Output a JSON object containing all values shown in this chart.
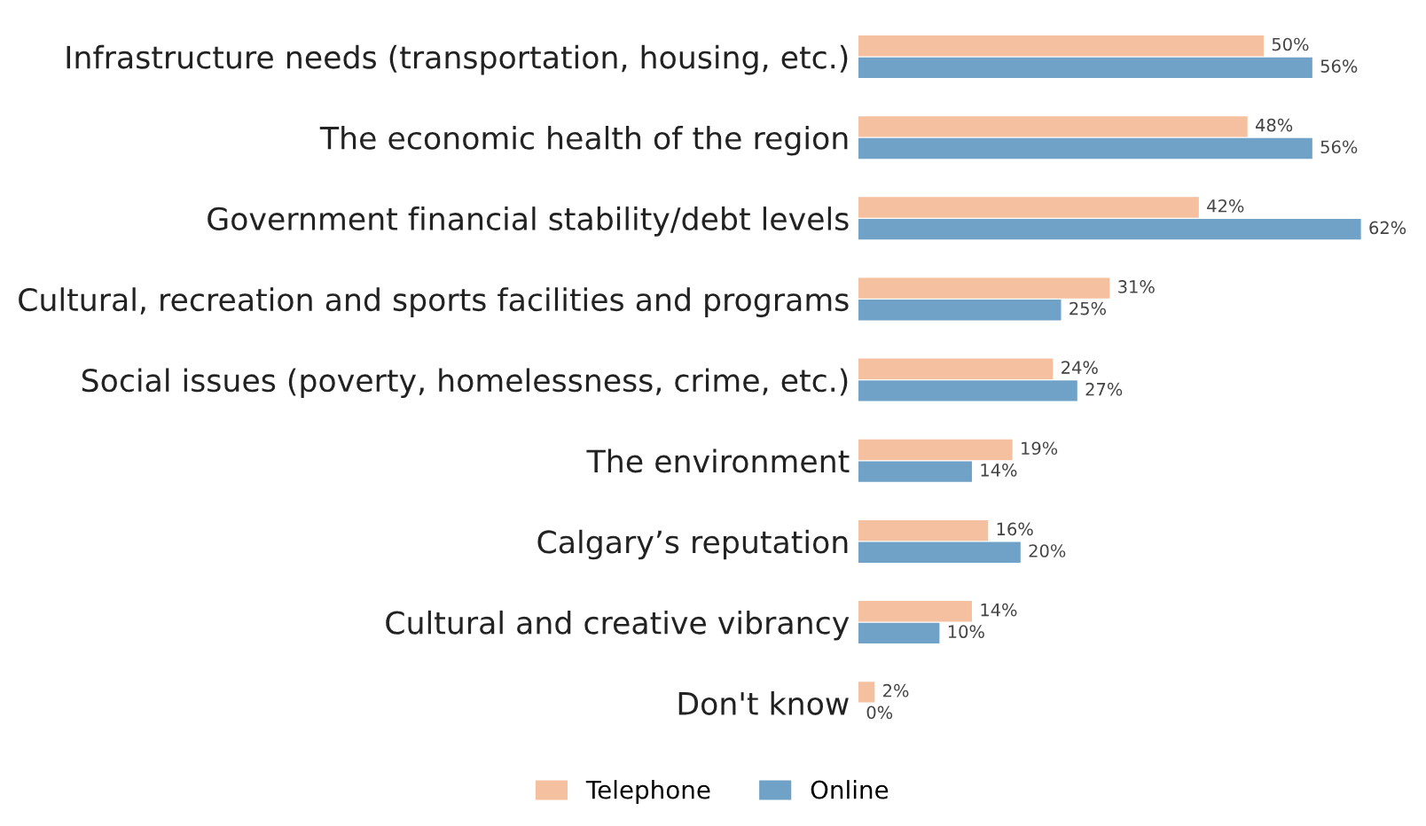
{
  "chart_data": {
    "type": "bar",
    "orientation": "horizontal",
    "categories": [
      "Infrastructure needs (transportation, housing, etc.)",
      "The economic health of the region",
      "Government financial stability/debt levels",
      "Cultural, recreation and sports facilities and programs",
      "Social issues (poverty, homelessness, crime, etc.)",
      "The environment",
      "Calgary’s reputation",
      "Cultural and creative vibrancy",
      "Don't know"
    ],
    "series": [
      {
        "name": "Telephone",
        "color": "#f5c09f",
        "values": [
          50,
          48,
          42,
          31,
          24,
          19,
          16,
          14,
          2
        ],
        "value_labels": [
          "50%",
          "48%",
          "42%",
          "31%",
          "24%",
          "19%",
          "16%",
          "14%",
          "2%"
        ]
      },
      {
        "name": "Online",
        "color": "#6fa2c6",
        "values": [
          56,
          56,
          62,
          25,
          27,
          14,
          20,
          10,
          0
        ],
        "value_labels": [
          "56%",
          "56%",
          "62%",
          "25%",
          "27%",
          "14%",
          "20%",
          "10%",
          "0%"
        ]
      }
    ],
    "tick_labels": "y",
    "grid": false,
    "legend": "bottom"
  }
}
